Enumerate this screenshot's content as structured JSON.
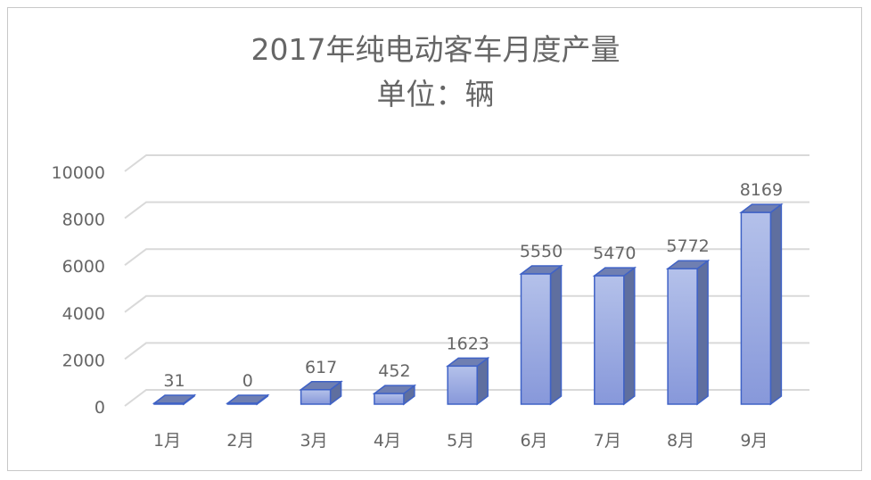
{
  "chart_data": {
    "type": "bar",
    "title": "2017年纯电动客车月度产量",
    "subtitle": "单位：辆",
    "categories": [
      "1月",
      "2月",
      "3月",
      "4月",
      "5月",
      "6月",
      "7月",
      "8月",
      "9月"
    ],
    "values": [
      31,
      0,
      617,
      452,
      1623,
      5550,
      5470,
      5772,
      8169
    ],
    "data_labels": [
      "31",
      "0",
      "617",
      "452",
      "1623",
      "5550",
      "5470",
      "5772",
      "8169"
    ],
    "y_ticks": [
      "0",
      "2000",
      "4000",
      "6000",
      "8000",
      "10000"
    ],
    "ylim": [
      0,
      10000
    ],
    "grid": true,
    "style": "3d-column",
    "colors": {
      "bar_front_top": "#b4c1ea",
      "bar_front_bottom": "#8798da",
      "bar_side": "#5f6f9f",
      "bar_top": "#6f7fb2",
      "bar_outline": "#3f62c6",
      "grid": "#d9d9d9",
      "text": "#666666"
    }
  }
}
